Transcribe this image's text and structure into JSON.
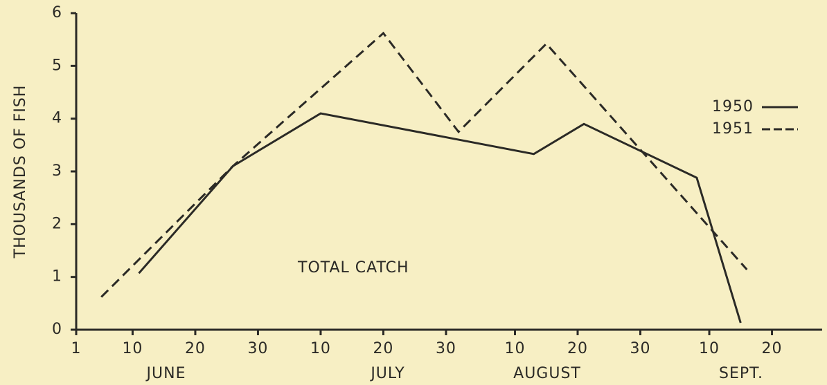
{
  "chart_data": {
    "type": "line",
    "ylabel": "THOUSANDS OF FISH",
    "annotation": "TOTAL CATCH",
    "x_groups": [
      "JUNE",
      "JULY",
      "AUGUST",
      "SEPT."
    ],
    "xlim": [
      1,
      120
    ],
    "xticks": [
      1,
      10,
      20,
      30,
      {
        "value": 40,
        "label": "10"
      },
      {
        "value": 50,
        "label": "20"
      },
      {
        "value": 60,
        "label": "30"
      },
      {
        "value": 71,
        "label": "10"
      },
      {
        "value": 81,
        "label": "20"
      },
      {
        "value": 91,
        "label": "30"
      },
      {
        "value": 102,
        "label": "10"
      },
      {
        "value": 112,
        "label": "20"
      }
    ],
    "ylim": [
      0,
      6
    ],
    "yticks": [
      0,
      1,
      2,
      3,
      4,
      5,
      6
    ],
    "legend": "upper right",
    "series": [
      {
        "name": "1950",
        "color": "#2b2a26",
        "linestyle": "solid",
        "x": [
          11,
          26,
          40,
          74,
          82,
          100,
          107
        ],
        "values": [
          1.07,
          3.1,
          4.1,
          3.33,
          3.9,
          2.88,
          0.13
        ]
      },
      {
        "name": "1951",
        "color": "#2b2a26",
        "linestyle": "dashed",
        "x": [
          5,
          26,
          50,
          62,
          76,
          108
        ],
        "values": [
          0.62,
          3.1,
          5.62,
          3.75,
          5.42,
          1.14
        ]
      }
    ]
  }
}
